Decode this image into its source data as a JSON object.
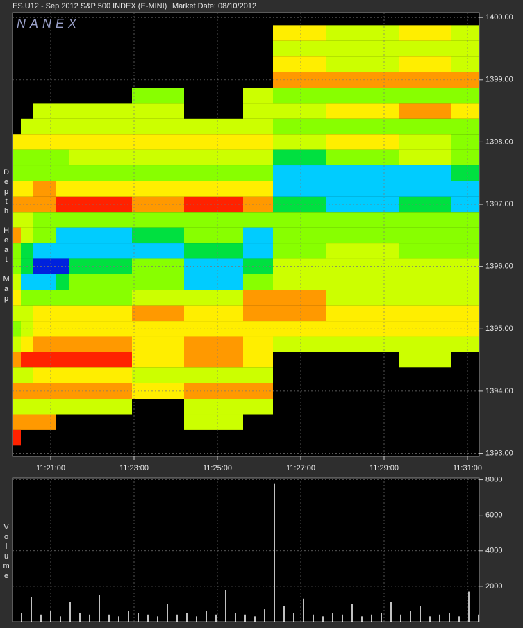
{
  "header": {
    "symbol": "ES.U12 - Sep 2012 S&P 500 INDEX (E-MINI)",
    "market_date": "Market Date: 08/10/2012"
  },
  "watermark": "NANEX",
  "chart_data": [
    {
      "type": "heatmap",
      "y_label": "Depth Heat Map",
      "colors": [
        "#0022dd",
        "#00ccff",
        "#00e040",
        "#88ff00",
        "#ccff00",
        "#ffee00",
        "#ff9900",
        "#ff2200"
      ],
      "x_bins": [
        40805,
        40817,
        40835,
        40867,
        40887,
        40977,
        41052,
        41137,
        41180,
        41257,
        41362,
        41437,
        41477
      ],
      "rows": [
        1400,
        1399.75,
        1399.5,
        1399.25,
        1399,
        1398.75,
        1398.5,
        1398.25,
        1398,
        1397.75,
        1397.5,
        1397.25,
        1397,
        1396.75,
        1396.5,
        1396.25,
        1396,
        1395.75,
        1395.5,
        1395.25,
        1395,
        1394.75,
        1394.5,
        1394.25,
        1394,
        1393.75,
        1393.5,
        1393.25,
        1393
      ],
      "values": [
        [
          null,
          null,
          null,
          null,
          null,
          null,
          null,
          null,
          null,
          null,
          null,
          null
        ],
        [
          null,
          null,
          null,
          null,
          null,
          null,
          null,
          null,
          6,
          5,
          6,
          5
        ],
        [
          null,
          null,
          null,
          null,
          null,
          null,
          null,
          null,
          5,
          5,
          5,
          5
        ],
        [
          null,
          null,
          null,
          null,
          null,
          null,
          null,
          null,
          6,
          5,
          6,
          5
        ],
        [
          null,
          null,
          null,
          null,
          null,
          null,
          null,
          null,
          7,
          7,
          7,
          7
        ],
        [
          null,
          null,
          null,
          null,
          null,
          4,
          null,
          5,
          4,
          4,
          4,
          4
        ],
        [
          null,
          null,
          5,
          5,
          5,
          5,
          null,
          5,
          5,
          6,
          7,
          6
        ],
        [
          null,
          5,
          5,
          5,
          5,
          5,
          5,
          5,
          4,
          4,
          4,
          4
        ],
        [
          6,
          6,
          6,
          6,
          6,
          6,
          6,
          6,
          5,
          6,
          5,
          4
        ],
        [
          4,
          4,
          4,
          4,
          5,
          5,
          5,
          5,
          3,
          4,
          5,
          4
        ],
        [
          4,
          4,
          4,
          4,
          4,
          4,
          4,
          4,
          2,
          2,
          2,
          3
        ],
        [
          6,
          6,
          7,
          6,
          6,
          6,
          6,
          6,
          2,
          2,
          2,
          2
        ],
        [
          7,
          7,
          7,
          8,
          8,
          7,
          8,
          7,
          3,
          2,
          3,
          2
        ],
        [
          5,
          5,
          4,
          4,
          4,
          4,
          4,
          4,
          4,
          4,
          4,
          4
        ],
        [
          7,
          5,
          4,
          2,
          2,
          3,
          4,
          2,
          4,
          4,
          4,
          4
        ],
        [
          4,
          3,
          2,
          2,
          2,
          2,
          3,
          2,
          4,
          5,
          4,
          4
        ],
        [
          4,
          3,
          1,
          1,
          3,
          4,
          2,
          3,
          5,
          5,
          5,
          5
        ],
        [
          5,
          2,
          2,
          3,
          4,
          4,
          2,
          4,
          5,
          5,
          5,
          5
        ],
        [
          6,
          4,
          4,
          4,
          4,
          5,
          5,
          7,
          7,
          5,
          5,
          5
        ],
        [
          5,
          5,
          6,
          6,
          6,
          7,
          6,
          7,
          7,
          6,
          6,
          6
        ],
        [
          4,
          5,
          6,
          6,
          6,
          6,
          6,
          6,
          6,
          6,
          6,
          6
        ],
        [
          5,
          6,
          7,
          7,
          7,
          6,
          7,
          6,
          5,
          5,
          5,
          5
        ],
        [
          7,
          8,
          8,
          8,
          8,
          6,
          7,
          6,
          null,
          null,
          5,
          null
        ],
        [
          5,
          5,
          6,
          6,
          6,
          5,
          5,
          5,
          null,
          null,
          null,
          null
        ],
        [
          7,
          7,
          7,
          7,
          7,
          6,
          7,
          7,
          null,
          null,
          null,
          null
        ],
        [
          5,
          5,
          5,
          5,
          5,
          null,
          5,
          5,
          null,
          null,
          null,
          null
        ],
        [
          7,
          7,
          7,
          null,
          null,
          null,
          5,
          null,
          null,
          null,
          null,
          null
        ],
        [
          8,
          null,
          null,
          null,
          null,
          null,
          null,
          null,
          null,
          null,
          null,
          null
        ],
        [
          null,
          null,
          null,
          null,
          null,
          null,
          null,
          null,
          null,
          null,
          null,
          null
        ]
      ],
      "xlim": [
        40805,
        41477
      ],
      "xticks": [
        {
          "value": 40860,
          "label": "11:21:00"
        },
        {
          "value": 40980,
          "label": "11:23:00"
        },
        {
          "value": 41100,
          "label": "11:25:00"
        },
        {
          "value": 41220,
          "label": "11:27:00"
        },
        {
          "value": 41340,
          "label": "11:29:00"
        },
        {
          "value": 41460,
          "label": "11:31:00"
        }
      ],
      "ylim": [
        1392.95,
        1400.08
      ],
      "yticks": [
        {
          "value": 1393,
          "label": "1393.00"
        },
        {
          "value": 1394,
          "label": "1394.00"
        },
        {
          "value": 1395,
          "label": "1395.00"
        },
        {
          "value": 1396,
          "label": "1396.00"
        },
        {
          "value": 1397,
          "label": "1397.00"
        },
        {
          "value": 1398,
          "label": "1398.00"
        },
        {
          "value": 1399,
          "label": "1399.00"
        },
        {
          "value": 1400,
          "label": "1400.00"
        }
      ],
      "grid": true
    },
    {
      "type": "volume",
      "y_label": "Volume",
      "color": "#ffffff",
      "x": [
        40818,
        40832,
        40846,
        40860,
        40874,
        40888,
        40902,
        40916,
        40930,
        40944,
        40958,
        40972,
        40986,
        41000,
        41014,
        41028,
        41042,
        41056,
        41070,
        41084,
        41098,
        41112,
        41126,
        41140,
        41154,
        41168,
        41182,
        41196,
        41210,
        41224,
        41238,
        41252,
        41266,
        41280,
        41294,
        41308,
        41322,
        41336,
        41350,
        41364,
        41378,
        41392,
        41406,
        41420,
        41434,
        41448,
        41462,
        41476
      ],
      "values": [
        500,
        1400,
        400,
        600,
        300,
        1100,
        500,
        400,
        1500,
        400,
        300,
        600,
        500,
        400,
        300,
        1000,
        400,
        500,
        300,
        600,
        400,
        1800,
        500,
        400,
        300,
        700,
        7800,
        900,
        500,
        1300,
        400,
        300,
        500,
        400,
        1000,
        300,
        400,
        500,
        1100,
        400,
        600,
        900,
        300,
        400,
        500,
        300,
        1700,
        400
      ],
      "xlim": [
        40805,
        41477
      ],
      "ylim": [
        0,
        8100
      ],
      "yticks": [
        2000,
        4000,
        6000,
        8000
      ],
      "grid": true
    }
  ]
}
